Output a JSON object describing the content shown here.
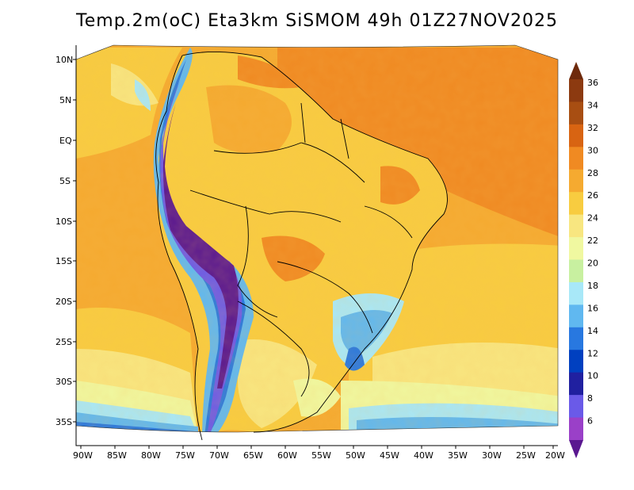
{
  "title": "Temp.2m(oC) Eta3km SiSMOM 49h 01Z27NOV2025",
  "map": {
    "variable": "Temp.2m",
    "unit": "oC",
    "model": "Eta3km",
    "run_label": "SiSMOM",
    "lead_time": "49h",
    "valid_time": "01Z27NOV2025",
    "lat_labels": [
      "10N",
      "5N",
      "EQ",
      "5S",
      "10S",
      "15S",
      "20S",
      "25S",
      "30S",
      "35S"
    ],
    "lon_labels": [
      "90W",
      "85W",
      "80W",
      "75W",
      "70W",
      "65W",
      "60W",
      "55W",
      "50W",
      "45W",
      "40W",
      "35W",
      "30W",
      "25W",
      "20W"
    ]
  },
  "colorbar": {
    "labels": [
      "36",
      "34",
      "32",
      "30",
      "28",
      "26",
      "24",
      "22",
      "20",
      "18",
      "16",
      "14",
      "12",
      "10",
      "8",
      "6"
    ],
    "colors": [
      "#6e2a0c",
      "#8c3a10",
      "#a84e12",
      "#d86412",
      "#f08a22",
      "#f5aa30",
      "#f8cc40",
      "#f8e680",
      "#f0f8a0",
      "#c8f0a0",
      "#a8e8f8",
      "#60b8f0",
      "#2878e0",
      "#0040c0",
      "#2020a0",
      "#6a5ae8",
      "#9a40c8",
      "#5a1890"
    ]
  }
}
